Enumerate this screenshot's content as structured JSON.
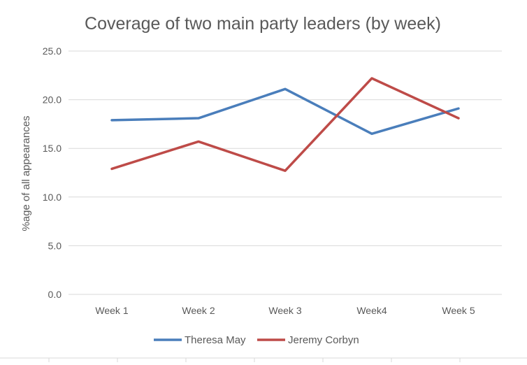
{
  "chart_data": {
    "type": "line",
    "title": "Coverage of two main party leaders (by week)",
    "xlabel": "",
    "ylabel": "%age of all appearances",
    "categories": [
      "Week 1",
      "Week 2",
      "Week 3",
      "Week4",
      "Week 5"
    ],
    "ylim": [
      0,
      25
    ],
    "yticks": [
      "0.0",
      "5.0",
      "10.0",
      "15.0",
      "20.0",
      "25.0"
    ],
    "grid": true,
    "legend_position": "bottom",
    "series": [
      {
        "name": "Theresa May",
        "color": "#4a7ebb",
        "values": [
          17.9,
          18.1,
          21.1,
          16.5,
          19.1
        ]
      },
      {
        "name": "Jeremy Corbyn",
        "color": "#be4b48",
        "values": [
          12.9,
          15.7,
          12.7,
          22.2,
          18.1
        ]
      }
    ]
  }
}
